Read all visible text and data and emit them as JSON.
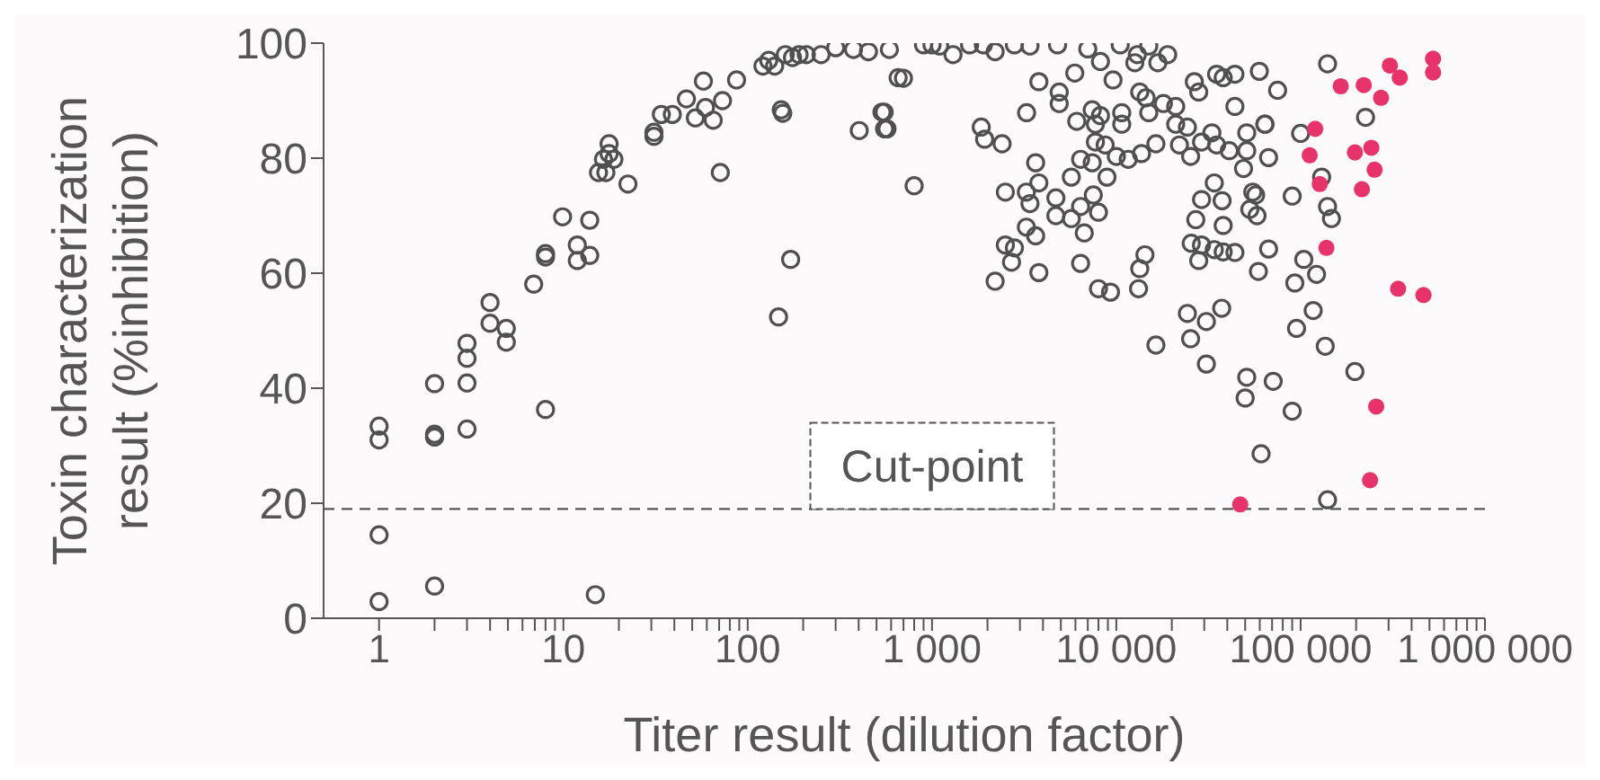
{
  "chart_data": {
    "type": "scatter",
    "xlabel": "Titer result (dilution factor)",
    "ylabel": "Toxin characterization result (%inhibition)",
    "log": "x",
    "grid": false,
    "legend": false,
    "marker": "circle",
    "xlim": [
      0.5,
      1000000
    ],
    "xticks": [
      {
        "value": 1,
        "label": "1"
      },
      {
        "value": 2,
        "label": null
      },
      {
        "value": 3,
        "label": null
      },
      {
        "value": 4,
        "label": null
      },
      {
        "value": 5,
        "label": null
      },
      {
        "value": 6,
        "label": null
      },
      {
        "value": 7,
        "label": null
      },
      {
        "value": 8,
        "label": null
      },
      {
        "value": 9,
        "label": null
      },
      {
        "value": 10,
        "label": "10"
      },
      {
        "value": 20,
        "label": null
      },
      {
        "value": 30,
        "label": null
      },
      {
        "value": 40,
        "label": null
      },
      {
        "value": 50,
        "label": null
      },
      {
        "value": 60,
        "label": null
      },
      {
        "value": 70,
        "label": null
      },
      {
        "value": 80,
        "label": null
      },
      {
        "value": 90,
        "label": null
      },
      {
        "value": 100,
        "label": "100"
      },
      {
        "value": 200,
        "label": null
      },
      {
        "value": 300,
        "label": null
      },
      {
        "value": 400,
        "label": null
      },
      {
        "value": 500,
        "label": null
      },
      {
        "value": 600,
        "label": null
      },
      {
        "value": 700,
        "label": null
      },
      {
        "value": 800,
        "label": null
      },
      {
        "value": 900,
        "label": null
      },
      {
        "value": 1000,
        "label": "1 000"
      },
      {
        "value": 2000,
        "label": null
      },
      {
        "value": 3000,
        "label": null
      },
      {
        "value": 4000,
        "label": null
      },
      {
        "value": 5000,
        "label": null
      },
      {
        "value": 6000,
        "label": null
      },
      {
        "value": 7000,
        "label": null
      },
      {
        "value": 8000,
        "label": null
      },
      {
        "value": 9000,
        "label": null
      },
      {
        "value": 10000,
        "label": "10 000"
      },
      {
        "value": 20000,
        "label": null
      },
      {
        "value": 30000,
        "label": null
      },
      {
        "value": 40000,
        "label": null
      },
      {
        "value": 50000,
        "label": null
      },
      {
        "value": 60000,
        "label": null
      },
      {
        "value": 70000,
        "label": null
      },
      {
        "value": 80000,
        "label": null
      },
      {
        "value": 90000,
        "label": null
      },
      {
        "value": 100000,
        "label": "100 000"
      },
      {
        "value": 200000,
        "label": null
      },
      {
        "value": 300000,
        "label": null
      },
      {
        "value": 400000,
        "label": null
      },
      {
        "value": 500000,
        "label": null
      },
      {
        "value": 600000,
        "label": null
      },
      {
        "value": 700000,
        "label": null
      },
      {
        "value": 800000,
        "label": null
      },
      {
        "value": 900000,
        "label": null
      },
      {
        "value": 1000000,
        "label": "1 000 000"
      }
    ],
    "ylim": [
      0,
      100
    ],
    "yticks": [
      0,
      20,
      40,
      60,
      80,
      100
    ],
    "ref_lines": [
      {
        "axis": "y",
        "value": 19,
        "label": "Cut-point",
        "color": "#555555",
        "line_style": "dashed"
      }
    ],
    "series": [
      {
        "color": "#505050",
        "x": [
          1,
          1,
          1,
          1,
          2,
          2,
          2,
          2,
          3,
          3,
          3,
          3,
          4,
          4,
          4.9,
          4.9,
          6.9,
          8,
          8,
          8,
          9.9,
          11.9,
          11.9,
          13.9,
          13.9,
          14.9,
          17.7,
          17.7,
          16.5,
          18.8,
          15.5,
          17,
          22.4,
          31,
          31,
          34,
          39,
          46.5,
          52,
          65,
          57.5,
          59,
          73,
          71,
          87,
          121,
          130,
          140,
          152,
          155,
          171,
          147,
          160,
          175,
          190,
          208,
          250,
          300,
          375,
          452,
          587,
          403,
          535,
          553,
          550,
          570,
          655,
          700,
          800,
          900,
          1000,
          1100,
          1300,
          1600,
          1900,
          2200,
          2800,
          3400,
          4800,
          7000,
          10500,
          13000,
          15000,
          19000,
          1850,
          1930,
          2400,
          2500,
          3650,
          3800,
          3250,
          3400,
          4700,
          4700,
          5700,
          6400,
          6700,
          7500,
          8000,
          3250,
          3650,
          2500,
          2800,
          2700,
          2200,
          3800,
          6400,
          8000,
          9300,
          13200,
          13400,
          14300,
          16400,
          24300,
          25300,
          30800,
          37300,
          30800,
          51000,
          50000,
          71000,
          90000,
          61000,
          140000,
          197000,
          136000,
          117000,
          95000,
          93000,
          122000,
          104000,
          67000,
          59000,
          44000,
          38000,
          34000,
          29000,
          25500,
          28000,
          27000,
          38000,
          29000,
          37500,
          34000,
          53000,
          58000,
          57000,
          55000,
          90000,
          140000,
          147000,
          130000,
          225000,
          140000,
          100000,
          75000,
          59700,
          64000,
          67000,
          5950,
          8200,
          9600,
          12600,
          16800,
          21000,
          26500,
          35000,
          44000,
          44000,
          7400,
          7700,
          8200,
          10700,
          10700,
          7700,
          8700,
          10000,
          11600,
          13700,
          16400,
          6400,
          7400,
          8900,
          5700,
          6100,
          4900,
          4900,
          21000,
          24300,
          22000,
          25300,
          29000,
          33000,
          35000,
          41000,
          51000,
          49000,
          51000,
          64000,
          28000,
          38000,
          14500,
          13400,
          15000,
          18000,
          3260,
          3800
        ],
        "values": [
          33.4,
          31,
          14.5,
          2.9,
          32,
          31.5,
          40.8,
          5.6,
          47.8,
          45.2,
          40.9,
          32.9,
          54.9,
          51.3,
          50.4,
          48,
          58.1,
          63.4,
          62.8,
          36.3,
          69.8,
          64.9,
          62.2,
          69.2,
          63.1,
          4.1,
          82.5,
          80.8,
          79.8,
          79.8,
          77.5,
          77.5,
          75.5,
          83.8,
          84.5,
          87.6,
          87.6,
          90.3,
          87,
          86.6,
          93.4,
          88.8,
          90,
          77.5,
          93.6,
          96,
          97,
          96,
          88.4,
          87.8,
          62.4,
          52.4,
          98,
          97.5,
          98,
          98,
          98,
          99.2,
          98.9,
          98.5,
          98.9,
          84.8,
          88,
          85.1,
          88,
          85.1,
          94,
          93.9,
          75.2,
          99.7,
          99.7,
          99.5,
          98,
          99.7,
          99.7,
          98.5,
          99.7,
          99.5,
          99.7,
          99,
          99.7,
          98,
          99.5,
          98,
          85.4,
          83.3,
          82.5,
          74.1,
          79.2,
          75.7,
          74.1,
          72.1,
          73.1,
          70,
          69.5,
          71.6,
          67,
          73.6,
          70.6,
          68,
          66.5,
          64.9,
          64.4,
          61.9,
          58.6,
          60.1,
          61.7,
          57.3,
          56.7,
          57.3,
          60.8,
          63.2,
          47.5,
          53,
          48.6,
          51.6,
          53.9,
          44.2,
          41.9,
          38.3,
          41.2,
          36,
          28.6,
          20.6,
          42.9,
          47.3,
          53.5,
          50.4,
          58.3,
          59.8,
          62.4,
          64.2,
          60.3,
          63.6,
          63.7,
          64.1,
          64.9,
          65.2,
          62.2,
          69.3,
          68.3,
          72.8,
          72.6,
          75.7,
          71.1,
          70,
          73.6,
          74.1,
          73.4,
          71.6,
          69.5,
          76.7,
          87.1,
          96.4,
          84.3,
          91.8,
          95.1,
          85.9,
          80.1,
          94.8,
          96.8,
          93.6,
          96.6,
          96.6,
          89,
          93.3,
          94.6,
          94.6,
          89,
          88.4,
          85.9,
          87.4,
          87.9,
          85.9,
          82.8,
          82.3,
          80.3,
          79.8,
          80.8,
          82.5,
          79.8,
          79.2,
          76.7,
          76.7,
          86.4,
          91.5,
          89.5,
          85.9,
          85.4,
          82.3,
          80.3,
          82.8,
          84.4,
          82.3,
          81.3,
          81.3,
          78.2,
          84.4,
          85.9,
          91.5,
          94,
          90.5,
          91.5,
          87.9,
          89.5,
          87.9,
          93.3
        ]
      },
      {
        "color": "#e8336a",
        "x": [
          523000,
          523000,
          305000,
          345000,
          165000,
          220000,
          273000,
          120000,
          112000,
          127000,
          197000,
          242000,
          252000,
          215000,
          138000,
          338000,
          464000,
          257000,
          238000,
          47000
        ],
        "values": [
          97.3,
          94.9,
          96.1,
          94,
          92.5,
          92.7,
          90.5,
          85.1,
          80.5,
          75.5,
          81,
          81.8,
          78,
          74.6,
          64.4,
          57.3,
          56.2,
          36.8,
          24,
          19.8
        ]
      }
    ]
  }
}
